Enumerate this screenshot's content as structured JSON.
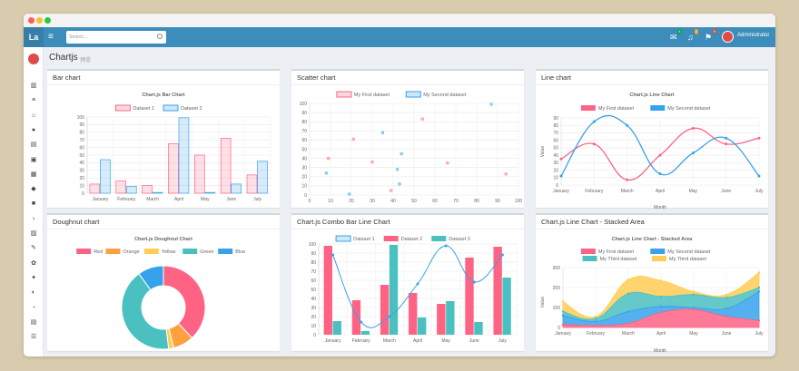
{
  "topbar": {
    "logo": "La",
    "search_placeholder": "Search...",
    "admin": "Administrator",
    "badges": [
      "4",
      "3",
      "9"
    ]
  },
  "page": {
    "title": "Chartjs",
    "subtitle": "预览"
  },
  "colors": {
    "red": "#ff6384",
    "orange": "#ff9f40",
    "yellow": "#ffcd56",
    "green": "#4bc0c0",
    "blue": "#36a2eb",
    "header": "#3c8dbc"
  },
  "sidebar": {
    "icons": [
      "chart-bar-icon",
      "list-icon",
      "bank-icon",
      "map-marker-icon",
      "map-icon",
      "book-icon",
      "table-icon",
      "flag-icon",
      "video-icon",
      "terminal-icon",
      "image-icon",
      "edit-icon",
      "cubes-icon",
      "cogs-icon",
      "toggle-icon",
      "clock-icon",
      "archive-icon",
      "sliders-icon"
    ]
  },
  "cards": {
    "bar": "Bar chart",
    "scatter": "Scatter chart",
    "line": "Line chart",
    "doughnut": "Doughnut chart",
    "combo": "Chart.js Combo Bar Line Chart",
    "stacked": "Chart.js Line Chart - Stacked Area"
  },
  "chart_data": [
    {
      "type": "bar",
      "title": "Chart.js Bar Chart",
      "categories": [
        "January",
        "February",
        "March",
        "April",
        "May",
        "June",
        "July"
      ],
      "ylim": [
        0,
        100
      ],
      "yticks": [
        0,
        10,
        20,
        30,
        40,
        50,
        60,
        70,
        80,
        90,
        100
      ],
      "series": [
        {
          "name": "Dataset 1",
          "values": [
            12,
            16,
            10,
            65,
            50,
            72,
            24
          ]
        },
        {
          "name": "Dataset 2",
          "values": [
            44,
            9,
            1,
            99,
            1,
            12,
            42
          ]
        }
      ],
      "legend": "top"
    },
    {
      "type": "scatter",
      "xlim": [
        0,
        100
      ],
      "ylim": [
        0,
        100
      ],
      "xticks": [
        0,
        10,
        20,
        30,
        40,
        50,
        60,
        70,
        80,
        90,
        100
      ],
      "yticks": [
        0,
        10,
        20,
        30,
        40,
        50,
        60,
        70,
        80,
        90,
        100
      ],
      "series": [
        {
          "name": "My First dataset",
          "points": [
            [
              9,
              40
            ],
            [
              21,
              61
            ],
            [
              30,
              36
            ],
            [
              39,
              5
            ],
            [
              54,
              83
            ],
            [
              66,
              35
            ],
            [
              94,
              23
            ]
          ]
        },
        {
          "name": "My Second dataset",
          "points": [
            [
              8,
              24
            ],
            [
              19,
              1
            ],
            [
              35,
              68
            ],
            [
              42,
              28
            ],
            [
              44,
              45
            ],
            [
              43,
              12
            ],
            [
              87,
              99
            ]
          ]
        }
      ],
      "legend": "top"
    },
    {
      "type": "line",
      "title": "Chart.js Line Chart",
      "categories": [
        "January",
        "February",
        "March",
        "April",
        "May",
        "June",
        "July"
      ],
      "xlabel": "Month",
      "ylabel": "Value",
      "ylim": [
        0,
        90
      ],
      "yticks": [
        0,
        10,
        20,
        30,
        40,
        50,
        60,
        70,
        80,
        90
      ],
      "series": [
        {
          "name": "My First dataset",
          "values": [
            35,
            55,
            7,
            40,
            76,
            55,
            63
          ]
        },
        {
          "name": "My Second dataset",
          "values": [
            12,
            85,
            80,
            15,
            43,
            63,
            12
          ]
        }
      ],
      "legend": "top"
    },
    {
      "type": "pie",
      "title": "Chart.js Doughnut Chart",
      "labels": [
        "Red",
        "Orange",
        "Yellow",
        "Green",
        "Blue"
      ],
      "values": [
        38,
        8,
        2,
        42,
        10
      ],
      "legend": "top"
    },
    {
      "type": "bar",
      "title": "Chart.js Combo Bar Line Chart",
      "categories": [
        "January",
        "February",
        "March",
        "April",
        "May",
        "June",
        "July"
      ],
      "ylim": [
        0,
        100
      ],
      "yticks": [
        0,
        10,
        20,
        30,
        40,
        50,
        60,
        70,
        80,
        90,
        100
      ],
      "series": [
        {
          "name": "Dataset 1",
          "kind": "line",
          "values": [
            88,
            14,
            20,
            56,
            98,
            58,
            88
          ]
        },
        {
          "name": "Dataset 2",
          "kind": "bar",
          "values": [
            98,
            38,
            55,
            46,
            34,
            85,
            97
          ]
        },
        {
          "name": "Dataset 3",
          "kind": "bar",
          "values": [
            15,
            4,
            99,
            19,
            37,
            14,
            63
          ]
        }
      ],
      "legend": "top"
    },
    {
      "type": "area",
      "title": "Chart.js Line Chart - Stacked Area",
      "categories": [
        "January",
        "February",
        "March",
        "April",
        "May",
        "June",
        "July"
      ],
      "xlabel": "Month",
      "ylabel": "Value",
      "ylim": [
        0,
        300
      ],
      "yticks": [
        0,
        100,
        200,
        300
      ],
      "series": [
        {
          "name": "My First dataset",
          "values": [
            15,
            10,
            20,
            75,
            90,
            55,
            35
          ]
        },
        {
          "name": "My Second dataset",
          "values": [
            45,
            20,
            60,
            30,
            10,
            40,
            145
          ]
        },
        {
          "name": "My Third dataset",
          "values": [
            20,
            15,
            90,
            50,
            65,
            55,
            20
          ]
        },
        {
          "name": "My Third dataset",
          "values": [
            50,
            10,
            70,
            80,
            15,
            15,
            75
          ]
        }
      ],
      "legend": "top"
    }
  ]
}
